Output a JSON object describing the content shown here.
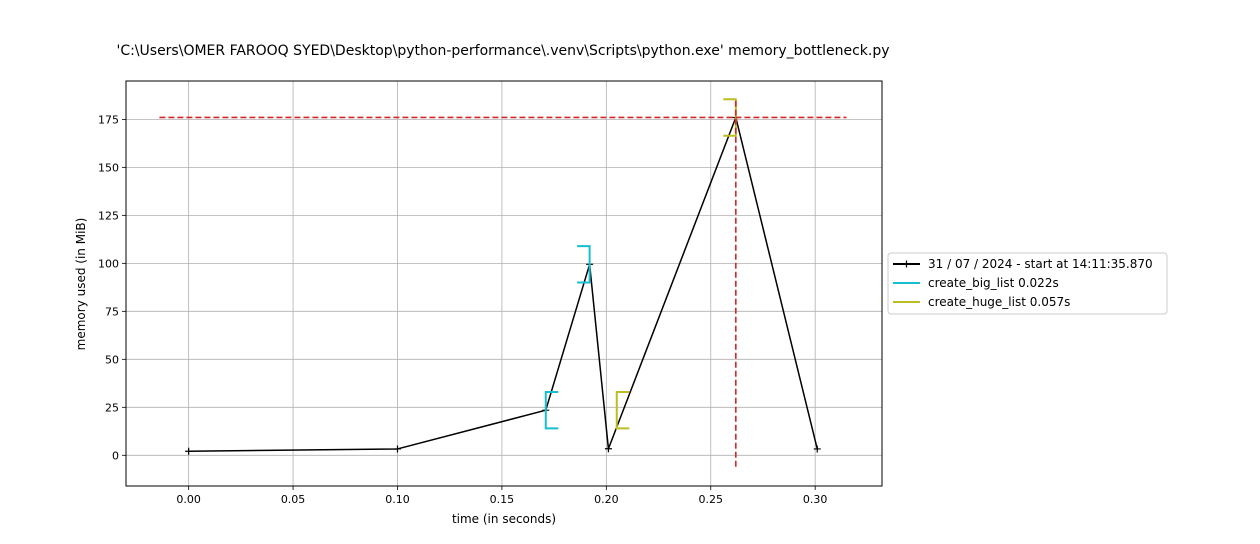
{
  "chart_data": {
    "type": "line",
    "title": "'C:\\Users\\OMER FAROOQ SYED\\Desktop\\python-performance\\.venv\\Scripts\\python.exe' memory_bottleneck.py",
    "xlabel": "time (in seconds)",
    "ylabel": "memory used (in MiB)",
    "xlim": [
      -0.03,
      0.332
    ],
    "ylim": [
      -16,
      195
    ],
    "x_ticks": [
      0.0,
      0.05,
      0.1,
      0.15,
      0.2,
      0.25,
      0.3
    ],
    "x_tick_labels": [
      "0.00",
      "0.05",
      "0.10",
      "0.15",
      "0.20",
      "0.25",
      "0.30"
    ],
    "y_ticks": [
      0,
      25,
      50,
      75,
      100,
      125,
      150,
      175
    ],
    "y_tick_labels": [
      "0",
      "25",
      "50",
      "75",
      "100",
      "125",
      "150",
      "175"
    ],
    "grid": true,
    "legend_position": "right",
    "series": [
      {
        "name": "31 / 07 / 2024 - start at 14:11:35.870",
        "color": "#000000",
        "marker": "plus",
        "x": [
          0.0,
          0.1,
          0.171,
          0.192,
          0.201,
          0.262,
          0.301
        ],
        "y": [
          2.1,
          3.3,
          23.5,
          99.5,
          3.4,
          176.0,
          3.3
        ]
      }
    ],
    "function_brackets": [
      {
        "name": "create_big_list 0.022s",
        "color": "#17becf",
        "x_start": 0.171,
        "x_end": 0.192,
        "y_start": 23.5,
        "y_end": 99.5,
        "half_height": 9.5,
        "arm_length": 0.006
      },
      {
        "name": "create_huge_list 0.057s",
        "color": "#bcbd22",
        "x_start": 0.205,
        "x_end": 0.262,
        "y_start": 23.5,
        "y_end": 176.0,
        "half_height": 9.5,
        "arm_length": 0.006
      }
    ],
    "peak_lines": {
      "color": "#d62728",
      "horizontal": {
        "y": 176.0,
        "x_from": -0.014,
        "x_to": 0.315
      },
      "vertical": {
        "x": 0.262,
        "y_from": -6,
        "y_to": 186
      }
    }
  }
}
